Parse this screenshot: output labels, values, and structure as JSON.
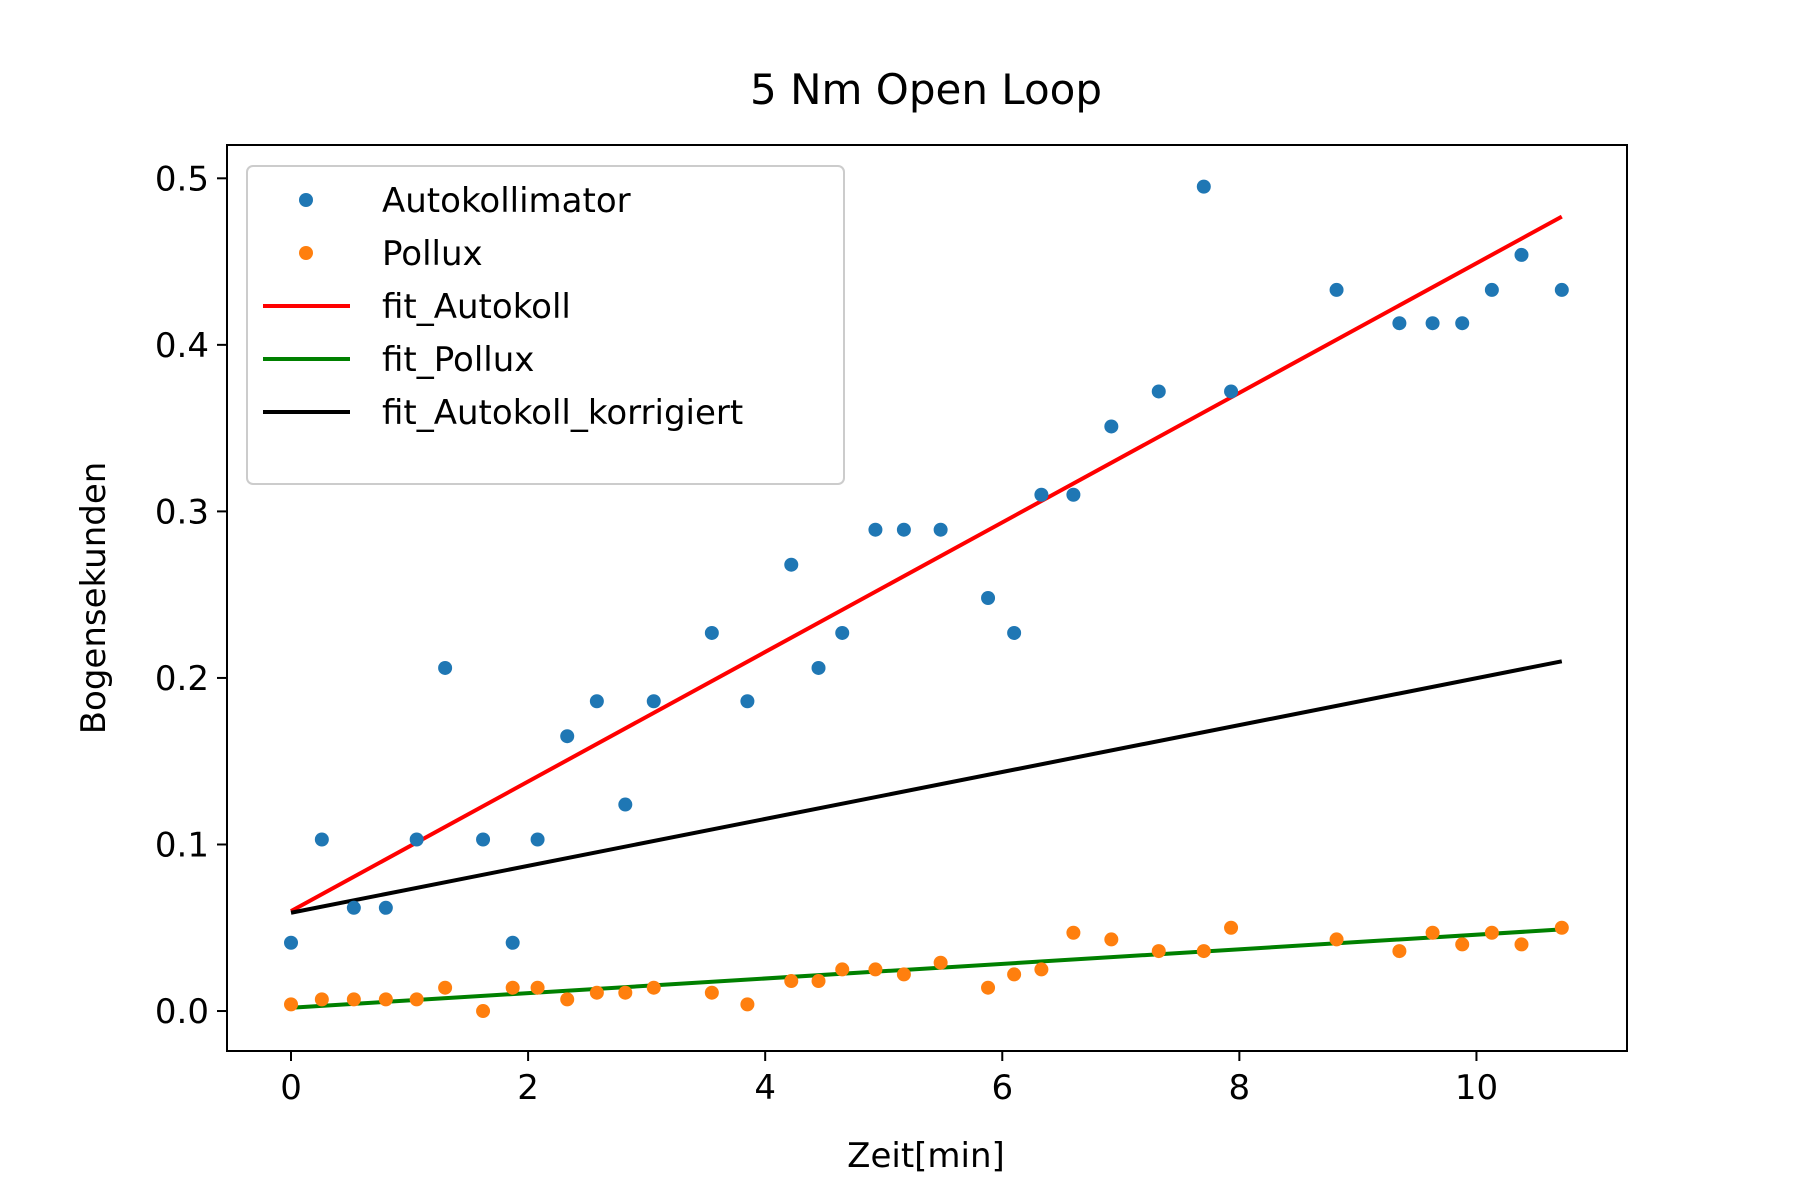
{
  "chart_data": {
    "type": "scatter",
    "title": "5 Nm Open Loop",
    "xlabel": "Zeit[min]",
    "ylabel": "Bogensekunden",
    "xlim": [
      -0.54,
      11.27
    ],
    "ylim": [
      -0.024,
      0.52
    ],
    "xticks": [
      0,
      2,
      4,
      6,
      8,
      10
    ],
    "xtick_labels": [
      "0",
      "2",
      "4",
      "6",
      "8",
      "10"
    ],
    "yticks": [
      0.0,
      0.1,
      0.2,
      0.3,
      0.4,
      0.5
    ],
    "ytick_labels": [
      "0.0",
      "0.1",
      "0.2",
      "0.3",
      "0.4",
      "0.5"
    ],
    "grid": false,
    "legend_position": "upper left",
    "series": [
      {
        "name": "Autokollimator",
        "kind": "scatter",
        "color": "#1f77b4",
        "x": [
          0.0,
          0.26,
          0.53,
          0.8,
          1.06,
          1.3,
          1.62,
          1.87,
          2.08,
          2.33,
          2.58,
          2.82,
          3.06,
          3.55,
          3.85,
          4.22,
          4.45,
          4.65,
          4.93,
          5.17,
          5.48,
          5.88,
          6.1,
          6.33,
          6.6,
          6.92,
          7.32,
          7.7,
          7.93,
          8.82,
          9.35,
          9.63,
          9.88,
          10.13,
          10.38,
          10.72
        ],
        "y": [
          0.041,
          0.103,
          0.062,
          0.062,
          0.103,
          0.206,
          0.103,
          0.041,
          0.103,
          0.165,
          0.186,
          0.124,
          0.186,
          0.227,
          0.186,
          0.268,
          0.206,
          0.227,
          0.289,
          0.289,
          0.289,
          0.248,
          0.227,
          0.31,
          0.31,
          0.351,
          0.372,
          0.495,
          0.372,
          0.433,
          0.413,
          0.413,
          0.413,
          0.433,
          0.454,
          0.433
        ]
      },
      {
        "name": "Pollux",
        "kind": "scatter",
        "color": "#ff7f0e",
        "x": [
          0.0,
          0.26,
          0.53,
          0.8,
          1.06,
          1.3,
          1.62,
          1.87,
          2.08,
          2.33,
          2.58,
          2.82,
          3.06,
          3.55,
          3.85,
          4.22,
          4.45,
          4.65,
          4.93,
          5.17,
          5.48,
          5.88,
          6.1,
          6.33,
          6.6,
          6.92,
          7.32,
          7.7,
          7.93,
          8.82,
          9.35,
          9.63,
          9.88,
          10.13,
          10.38,
          10.72
        ],
        "y": [
          0.004,
          0.007,
          0.007,
          0.007,
          0.007,
          0.014,
          0.0,
          0.014,
          0.014,
          0.007,
          0.011,
          0.011,
          0.014,
          0.011,
          0.004,
          0.018,
          0.018,
          0.025,
          0.025,
          0.022,
          0.029,
          0.014,
          0.022,
          0.025,
          0.047,
          0.043,
          0.036,
          0.036,
          0.05,
          0.043,
          0.036,
          0.047,
          0.04,
          0.047,
          0.04,
          0.05
        ]
      },
      {
        "name": "fit_Autokoll",
        "kind": "line",
        "color": "#ff0000",
        "x": [
          0.0,
          10.72
        ],
        "y": [
          0.06,
          0.477
        ]
      },
      {
        "name": "fit_Pollux",
        "kind": "line",
        "color": "#008000",
        "x": [
          0.0,
          10.72
        ],
        "y": [
          0.002,
          0.049
        ]
      },
      {
        "name": "fit_Autokoll_korrigiert",
        "kind": "line",
        "color": "#000000",
        "x": [
          0.0,
          10.72
        ],
        "y": [
          0.059,
          0.21
        ]
      }
    ]
  }
}
